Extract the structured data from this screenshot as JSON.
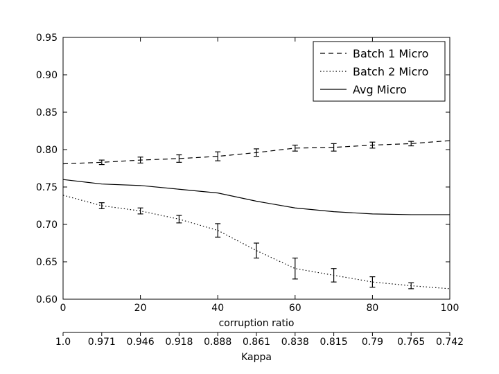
{
  "chart_data": {
    "type": "line",
    "title": "",
    "xlabel": "corruption ratio",
    "xlabel2": "Kappa",
    "ylabel": "",
    "xlim": [
      0,
      100
    ],
    "ylim": [
      0.6,
      0.95
    ],
    "x_ticks": [
      "0",
      "20",
      "40",
      "60",
      "80",
      "100"
    ],
    "y_ticks": [
      "0.60",
      "0.65",
      "0.70",
      "0.75",
      "0.80",
      "0.85",
      "0.90",
      "0.95"
    ],
    "kappa_ticks": [
      "1.0",
      "0.971",
      "0.946",
      "0.918",
      "0.888",
      "0.861",
      "0.838",
      "0.815",
      "0.79",
      "0.765",
      "0.742"
    ],
    "grid": false,
    "legend_position": "top-right",
    "x": [
      0,
      10,
      20,
      30,
      40,
      50,
      60,
      70,
      80,
      90,
      100
    ],
    "series": [
      {
        "name": "Batch 1 Micro",
        "style": "dashed",
        "values": [
          0.781,
          0.783,
          0.786,
          0.788,
          0.791,
          0.796,
          0.802,
          0.803,
          0.806,
          0.808,
          0.812
        ],
        "errors": [
          null,
          0.003,
          0.004,
          0.005,
          0.006,
          0.005,
          0.004,
          0.005,
          0.004,
          0.003,
          null
        ]
      },
      {
        "name": "Batch 2 Micro",
        "style": "dotted",
        "values": [
          0.739,
          0.725,
          0.718,
          0.707,
          0.692,
          0.665,
          0.641,
          0.632,
          0.623,
          0.618,
          0.614
        ],
        "errors": [
          null,
          0.004,
          0.004,
          0.005,
          0.009,
          0.01,
          0.014,
          0.009,
          0.007,
          0.004,
          null
        ]
      },
      {
        "name": "Avg Micro",
        "style": "solid",
        "values": [
          0.76,
          0.754,
          0.752,
          0.747,
          0.742,
          0.731,
          0.722,
          0.717,
          0.714,
          0.713,
          0.713
        ],
        "errors": null
      }
    ]
  }
}
